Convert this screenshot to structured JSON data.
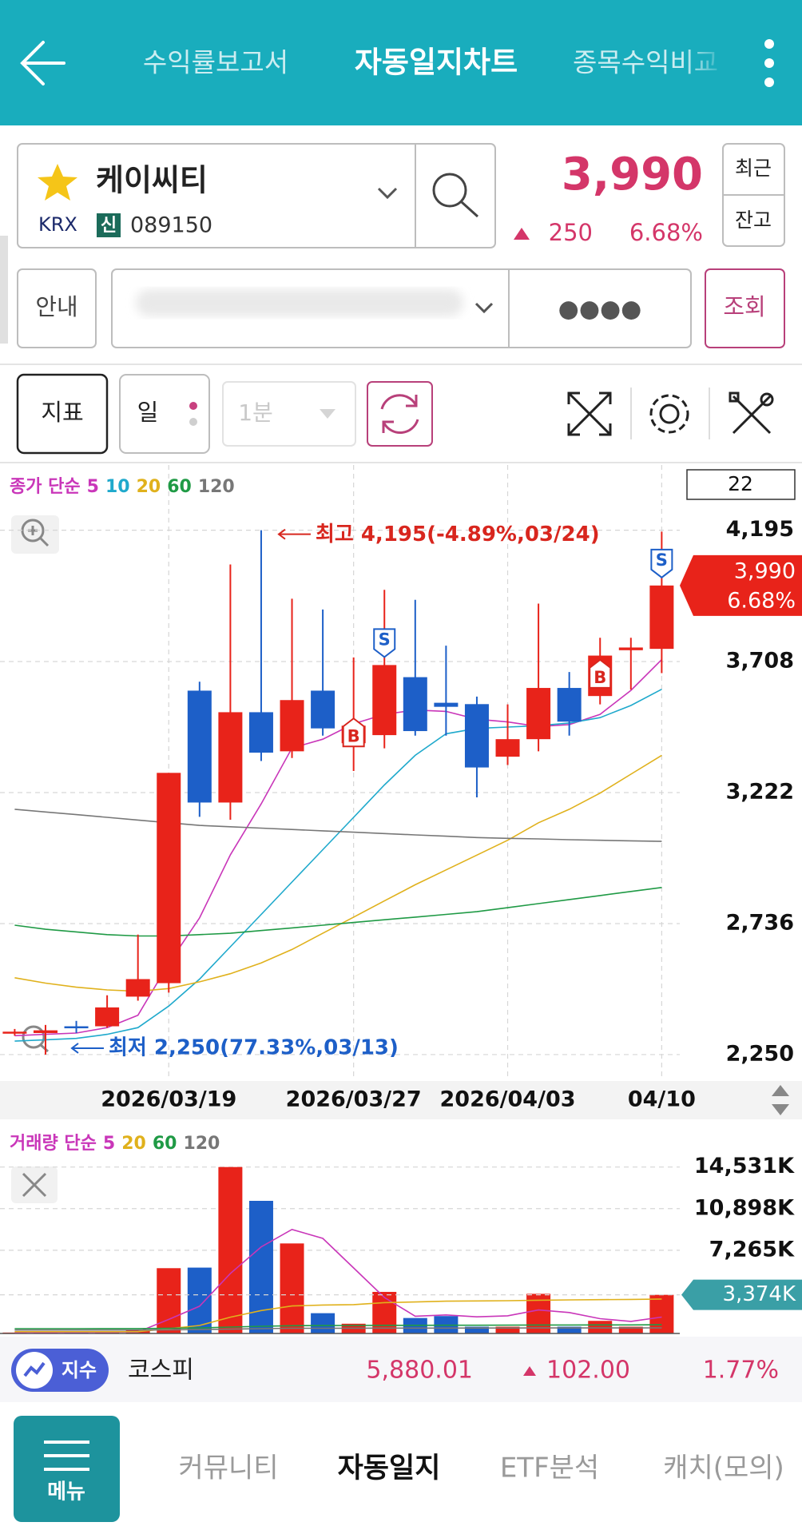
{
  "header": {
    "tabs": [
      "수익률보고서",
      "자동일지차트",
      "종목수익비교"
    ]
  },
  "stock": {
    "name": "케이씨티",
    "exchange": "KRX",
    "badge": "신",
    "code": "089150",
    "price": "3,990",
    "change": "250",
    "change_rate": "6.68%"
  },
  "controls": {
    "recent": "최근",
    "balance": "잔고",
    "guide": "안내",
    "password": "●●●●",
    "query": "조회",
    "indicator": "지표",
    "period": "일",
    "interval": "1분"
  },
  "chart_data": [
    {
      "type": "candlestick",
      "legend_title": "종가 단순",
      "visible_count": "22",
      "categories": [
        null,
        null,
        null,
        null,
        null,
        "2026/03/19",
        null,
        null,
        null,
        null,
        null,
        "2026/03/27",
        null,
        null,
        null,
        null,
        "2026/04/03",
        null,
        null,
        null,
        null,
        "04/10"
      ],
      "open": [
        2330,
        2330,
        2355,
        2355,
        2465,
        2515,
        3600,
        3185,
        3520,
        3375,
        3600,
        3405,
        3435,
        3650,
        3555,
        3550,
        3355,
        3420,
        3610,
        3580,
        3750,
        3755
      ],
      "high": [
        2345,
        2360,
        2375,
        2470,
        2695,
        3295,
        3633,
        4068,
        4195,
        3941,
        3901,
        3723,
        3974,
        3937,
        3767,
        3578,
        3549,
        3923,
        3669,
        3796,
        3796,
        4190
      ],
      "low": [
        2320,
        2250,
        2330,
        2350,
        2450,
        2480,
        3132,
        3121,
        3339,
        3350,
        3433,
        3302,
        3386,
        3433,
        3433,
        3204,
        3324,
        3375,
        3433,
        3549,
        3604,
        3665
      ],
      "close": [
        2335,
        2340,
        2350,
        2425,
        2530,
        3295,
        3185,
        3520,
        3370,
        3565,
        3460,
        3470,
        3695,
        3450,
        3540,
        3315,
        3420,
        3610,
        3485,
        3730,
        3760,
        3990
      ],
      "up_color": "#e8231a",
      "down_color": "#1d5fc8",
      "signals": [
        null,
        null,
        null,
        null,
        null,
        null,
        null,
        null,
        null,
        null,
        null,
        "B",
        "S",
        null,
        null,
        null,
        null,
        null,
        null,
        "B",
        null,
        "S"
      ],
      "series": [
        {
          "name": "5",
          "color": "#c936b9",
          "values": [
            2320,
            2325,
            2330,
            2350,
            2396,
            2588,
            2757,
            2991,
            3180,
            3387,
            3420,
            3477,
            3512,
            3528,
            3523,
            3494,
            3484,
            3467,
            3474,
            3512,
            3601,
            3715
          ]
        },
        {
          "name": "10",
          "color": "#1fa9cc",
          "values": [
            2300,
            2305,
            2310,
            2325,
            2350,
            2430,
            2530,
            2650,
            2770,
            2890,
            3010,
            3130,
            3250,
            3360,
            3440,
            3460,
            3465,
            3470,
            3480,
            3500,
            3545,
            3605
          ]
        },
        {
          "name": "20",
          "color": "#e0b11c",
          "values": [
            2535,
            2515,
            2500,
            2490,
            2485,
            2495,
            2520,
            2550,
            2590,
            2640,
            2700,
            2760,
            2820,
            2880,
            2935,
            2990,
            3045,
            3110,
            3160,
            3220,
            3290,
            3360
          ]
        },
        {
          "name": "60",
          "color": "#1f9a45",
          "values": [
            2730,
            2715,
            2705,
            2695,
            2690,
            2690,
            2695,
            2700,
            2710,
            2720,
            2730,
            2740,
            2750,
            2760,
            2770,
            2780,
            2795,
            2810,
            2825,
            2840,
            2855,
            2870
          ]
        },
        {
          "name": "120",
          "color": "#777777",
          "values": [
            3160,
            3150,
            3140,
            3130,
            3120,
            3110,
            3100,
            3095,
            3090,
            3085,
            3080,
            3075,
            3070,
            3065,
            3060,
            3055,
            3052,
            3050,
            3047,
            3045,
            3043,
            3041
          ]
        }
      ],
      "ylim": [
        2158,
        4437
      ],
      "yticks": [
        {
          "value": 4195,
          "label": "4,195"
        },
        {
          "value": 3708,
          "label": "3,708"
        },
        {
          "value": 3222,
          "label": "3,222"
        },
        {
          "value": 2736,
          "label": "2,736"
        },
        {
          "value": 2250,
          "label": "2,250"
        }
      ],
      "grid": true,
      "high_label": "최고 4,195(-4.89%,03/24)",
      "low_label": "최저 2,250(77.33%,03/13)"
    },
    {
      "type": "bar",
      "legend_title": "거래량 단순",
      "values": [
        80,
        120,
        90,
        110,
        250,
        5700,
        5750,
        14531,
        11580,
        7860,
        1770,
        850,
        3630,
        1350,
        1520,
        590,
        590,
        3460,
        590,
        1100,
        590,
        3374
      ],
      "series": [
        {
          "name": "5",
          "color": "#c936b9",
          "values": [
            100,
            100,
            100,
            110,
            130,
            1230,
            2380,
            5240,
            7560,
            9080,
            8300,
            5720,
            3140,
            1510,
            1620,
            1450,
            1540,
            2050,
            1830,
            1290,
            1050,
            1430
          ]
        },
        {
          "name": "20",
          "color": "#e0b11c",
          "values": [
            150,
            150,
            150,
            150,
            160,
            420,
            700,
            1420,
            2000,
            2400,
            2480,
            2520,
            2690,
            2750,
            2820,
            2840,
            2860,
            2900,
            2930,
            2950,
            2970,
            3010
          ]
        },
        {
          "name": "60",
          "color": "#1f9a45",
          "values": [
            420,
            420,
            420,
            425,
            425,
            450,
            480,
            560,
            630,
            680,
            690,
            695,
            710,
            715,
            720,
            722,
            724,
            740,
            742,
            746,
            748,
            760
          ]
        },
        {
          "name": "120",
          "color": "#777777",
          "values": [
            300,
            300,
            300,
            300,
            300,
            320,
            340,
            380,
            420,
            450,
            455,
            458,
            465,
            468,
            470,
            471,
            472,
            480,
            481,
            483,
            484,
            490
          ]
        }
      ],
      "ylim": [
        0,
        18626
      ],
      "yticks": [
        {
          "value": 14531,
          "label": "14,531K"
        },
        {
          "value": 10898,
          "label": "10,898K"
        },
        {
          "value": 7265,
          "label": "7,265K"
        }
      ],
      "grid": true,
      "last_label": {
        "value": 3374,
        "label": "3,374K"
      },
      "badge_color": "#3a9fa6"
    }
  ],
  "index_bar": {
    "badge": "지수",
    "name": "코스피",
    "value": "5,880.01",
    "change": "102.00",
    "change_rate": "1.77%"
  },
  "bottom_nav": {
    "menu": "메뉴",
    "items": [
      "커뮤니티",
      "자동일지",
      "ETF분석",
      "캐치(모의)"
    ]
  }
}
